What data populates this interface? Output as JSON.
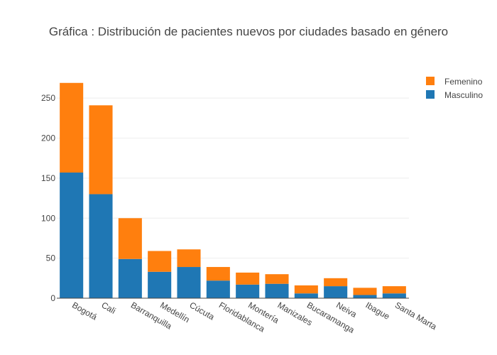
{
  "chart_data": {
    "type": "bar",
    "barmode": "stack",
    "title": "Gráfica : Distribución de pacientes nuevos por ciudades basado en género",
    "xlabel": "",
    "ylabel": "",
    "categories": [
      "Bogotá",
      "Cali",
      "Barranquilla",
      "Medellín",
      "Cúcuta",
      "Floridablanca",
      "Montería",
      "Manizales",
      "Bucaramanga",
      "Neiva",
      "Ibague",
      "Santa Marta"
    ],
    "series": [
      {
        "name": "Masculino",
        "color": "#1f77b4",
        "values": [
          157,
          130,
          49,
          33,
          39,
          22,
          17,
          18,
          6,
          15,
          4,
          6
        ]
      },
      {
        "name": "Femenino",
        "color": "#ff7f0e",
        "values": [
          112,
          111,
          51,
          26,
          22,
          17,
          15,
          12,
          10,
          10,
          9,
          9
        ]
      }
    ],
    "ylim": [
      0,
      275
    ],
    "yticks": [
      0,
      50,
      100,
      150,
      200,
      250
    ],
    "grid": true,
    "legend": "top-right"
  }
}
